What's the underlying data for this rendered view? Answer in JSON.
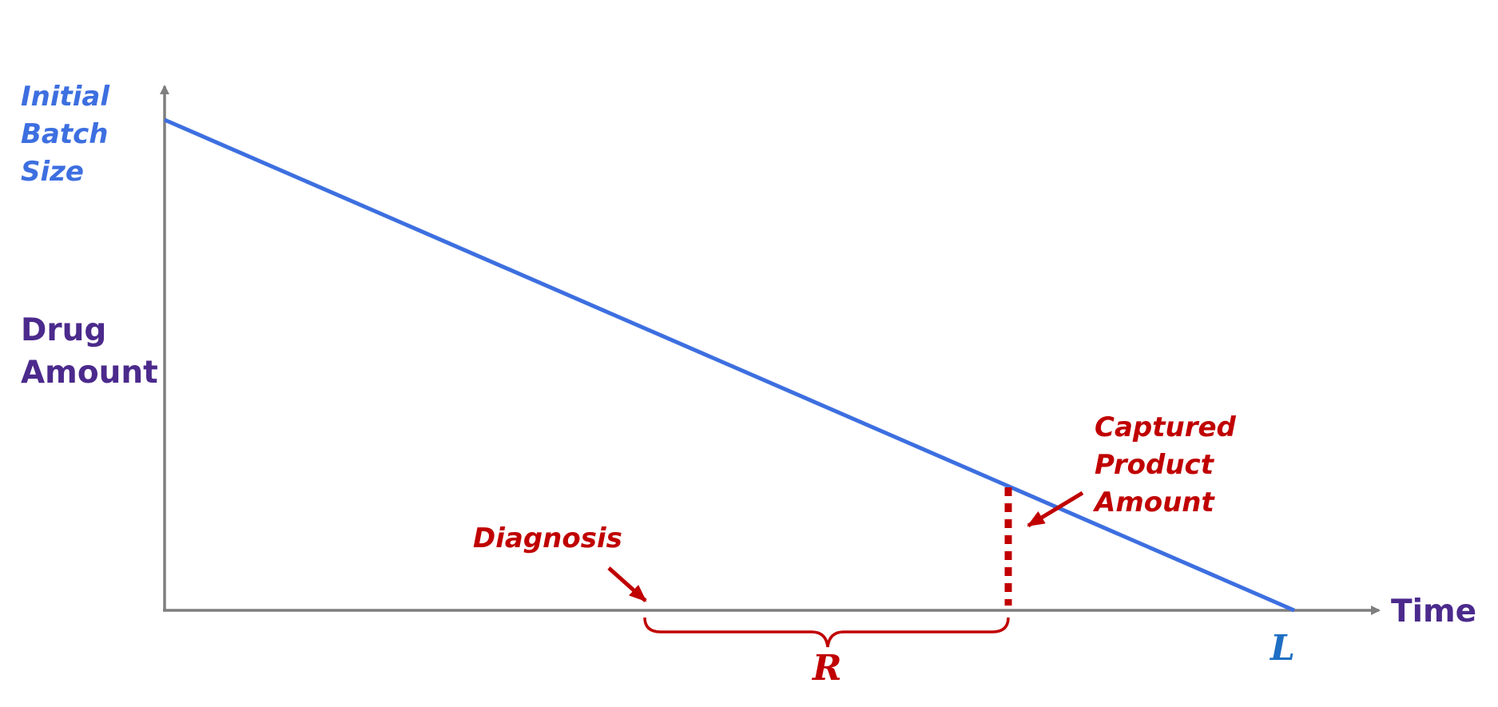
{
  "diagram": {
    "y_axis_title": {
      "line1": "Drug",
      "line2": "Amount"
    },
    "x_axis_title": "Time",
    "initial_batch_label": {
      "line1": "Initial",
      "line2": "Batch",
      "line3": "Size"
    },
    "diagnosis_label": "Diagnosis",
    "captured_label": {
      "line1": "Captured",
      "line2": "Product",
      "line3": "Amount"
    },
    "interval_label": "R",
    "lifetime_label": "L"
  },
  "colors": {
    "axis": "#7f7f7f",
    "depletion_line": "#3d6fe0",
    "annotation_red": "#c00000",
    "axis_title_purple": "#4b2a8c",
    "lifetime_blue": "#1f6fc4"
  }
}
